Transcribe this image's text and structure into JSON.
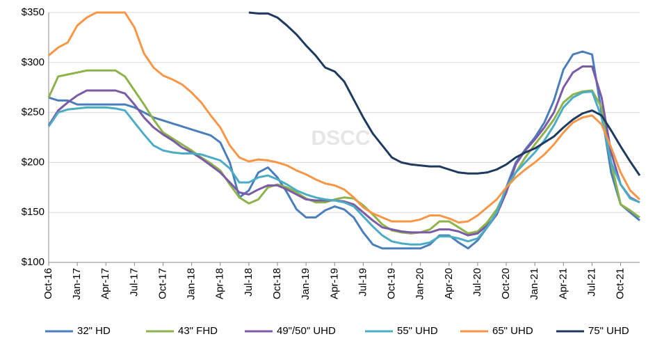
{
  "chart_data": {
    "type": "line",
    "watermark": "DSCC",
    "categories": [
      "Oct-16",
      null,
      null,
      "Jan-17",
      null,
      null,
      "Apr-17",
      null,
      null,
      "Jul-17",
      null,
      null,
      "Oct-17",
      null,
      null,
      "Jan-18",
      null,
      null,
      "Apr-18",
      null,
      null,
      "Jul-18",
      null,
      null,
      "Oct-18",
      null,
      null,
      "Jan-19",
      null,
      null,
      "Apr-19",
      null,
      null,
      "Jul-19",
      null,
      null,
      "Oct-19",
      null,
      null,
      "Jan-20",
      null,
      null,
      "Apr-20",
      null,
      null,
      "Jul-20",
      null,
      null,
      "Oct-20",
      null,
      null,
      "Jan-21",
      null,
      null,
      "Apr-21",
      null,
      null,
      "Jul-21",
      null,
      null,
      "Oct-21",
      null,
      null
    ],
    "ylim": [
      100,
      350
    ],
    "yticks": [
      {
        "value": 100,
        "label": "$100"
      },
      {
        "value": 150,
        "label": "$150"
      },
      {
        "value": 200,
        "label": "$200"
      },
      {
        "value": 250,
        "label": "$250"
      },
      {
        "value": 300,
        "label": "$300"
      },
      {
        "value": 350,
        "label": "$350"
      }
    ],
    "grid": true,
    "legend": "bottom",
    "series": [
      {
        "name": "32\" HD",
        "color": "#4a7ebb",
        "values": [
          265,
          262,
          262,
          258,
          258,
          258,
          258,
          258,
          258,
          255,
          250,
          245,
          242,
          239,
          236,
          233,
          230,
          227,
          220,
          200,
          165,
          172,
          190,
          195,
          185,
          170,
          153,
          145,
          145,
          152,
          156,
          153,
          145,
          130,
          118,
          114,
          114,
          114,
          114,
          114,
          118,
          127,
          127,
          120,
          114,
          122,
          135,
          148,
          175,
          200,
          213,
          225,
          240,
          262,
          293,
          308,
          311,
          308,
          250,
          190,
          158,
          150,
          142
        ]
      },
      {
        "name": "43\" FHD",
        "color": "#8db34a",
        "values": [
          265,
          286,
          288,
          290,
          292,
          292,
          292,
          292,
          286,
          272,
          258,
          243,
          230,
          224,
          218,
          212,
          205,
          199,
          192,
          178,
          165,
          159,
          163,
          175,
          178,
          175,
          170,
          164,
          160,
          160,
          163,
          165,
          164,
          157,
          148,
          138,
          132,
          130,
          129,
          130,
          133,
          141,
          141,
          135,
          129,
          131,
          140,
          153,
          172,
          190,
          205,
          218,
          230,
          243,
          260,
          268,
          271,
          272,
          255,
          200,
          158,
          152,
          145
        ]
      },
      {
        "name": "49\"/50\" UHD",
        "color": "#7b5aa6",
        "values": [
          237,
          252,
          260,
          267,
          272,
          272,
          272,
          272,
          269,
          258,
          245,
          235,
          228,
          222,
          215,
          210,
          204,
          197,
          190,
          180,
          170,
          168,
          173,
          177,
          177,
          173,
          168,
          163,
          162,
          162,
          162,
          161,
          158,
          150,
          142,
          135,
          133,
          131,
          130,
          130,
          130,
          133,
          133,
          131,
          127,
          129,
          137,
          148,
          170,
          198,
          212,
          223,
          235,
          250,
          275,
          290,
          296,
          296,
          265,
          210,
          178,
          165,
          160
        ]
      },
      {
        "name": "55\" UHD",
        "color": "#4bacc6",
        "values": [
          236,
          250,
          253,
          254,
          255,
          255,
          255,
          254,
          252,
          240,
          228,
          217,
          212,
          210,
          209,
          209,
          208,
          205,
          202,
          194,
          180,
          180,
          185,
          187,
          183,
          178,
          172,
          168,
          165,
          163,
          162,
          160,
          156,
          146,
          136,
          127,
          121,
          119,
          118,
          118,
          120,
          126,
          126,
          124,
          121,
          124,
          135,
          150,
          175,
          190,
          200,
          210,
          222,
          237,
          255,
          265,
          270,
          271,
          245,
          200,
          178,
          164,
          160
        ]
      },
      {
        "name": "65\" UHD",
        "color": "#f79646",
        "values": [
          307,
          315,
          320,
          337,
          345,
          350,
          350,
          350,
          350,
          335,
          309,
          295,
          287,
          283,
          278,
          270,
          260,
          247,
          235,
          217,
          205,
          201,
          203,
          202,
          200,
          197,
          192,
          188,
          183,
          179,
          177,
          173,
          165,
          155,
          149,
          145,
          141,
          141,
          141,
          143,
          147,
          147,
          144,
          140,
          141,
          147,
          155,
          163,
          175,
          185,
          193,
          200,
          208,
          218,
          230,
          240,
          245,
          247,
          238,
          215,
          190,
          172,
          163
        ]
      },
      {
        "name": "75\" UHD",
        "color": "#1f3a5f",
        "values": [
          null,
          null,
          null,
          null,
          null,
          null,
          null,
          null,
          null,
          null,
          null,
          null,
          null,
          null,
          null,
          null,
          null,
          null,
          null,
          null,
          null,
          350,
          349,
          349,
          345,
          337,
          328,
          317,
          307,
          295,
          291,
          281,
          263,
          245,
          229,
          217,
          205,
          200,
          198,
          197,
          196,
          196,
          193,
          190,
          189,
          189,
          190,
          193,
          198,
          205,
          210,
          214,
          220,
          226,
          235,
          243,
          249,
          252,
          247,
          232,
          216,
          201,
          187
        ]
      }
    ]
  }
}
